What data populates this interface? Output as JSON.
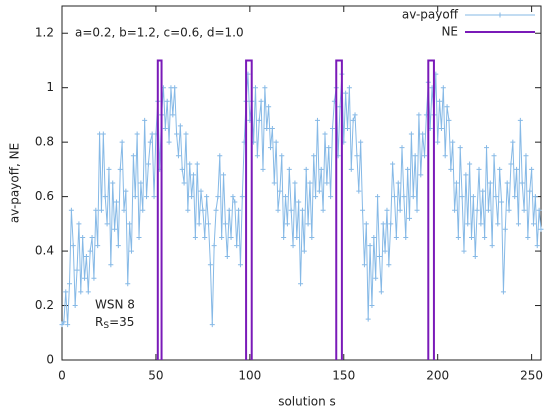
{
  "chart_data": {
    "type": "line",
    "xlabel": "solution s",
    "ylabel": "av-payoff, NE",
    "annotations": [
      "a=0.2, b=1.2, c=0.6, d=1.0",
      "WSN 8"
    ],
    "rs_label": {
      "base": "R",
      "sub": "S",
      "rest": "=35"
    },
    "xlim": [
      0,
      255
    ],
    "ylim": [
      0,
      1.3
    ],
    "xticks": [
      0,
      50,
      100,
      150,
      200,
      250
    ],
    "yticks": [
      0,
      0.2,
      0.4,
      0.6,
      0.8,
      1,
      1.2
    ],
    "legend": "upper right",
    "series": [
      {
        "name": "av-payoff",
        "color": "#86b9e6",
        "marker": "plus",
        "x": [
          0,
          1,
          2,
          3,
          4,
          5,
          6,
          7,
          8,
          9,
          10,
          11,
          12,
          13,
          14,
          15,
          16,
          17,
          18,
          19,
          20,
          21,
          22,
          23,
          24,
          25,
          26,
          27,
          28,
          29,
          30,
          31,
          32,
          33,
          34,
          35,
          36,
          37,
          38,
          39,
          40,
          41,
          42,
          43,
          44,
          45,
          46,
          47,
          48,
          49,
          50,
          51,
          52,
          53,
          54,
          55,
          56,
          57,
          58,
          59,
          60,
          61,
          62,
          63,
          64,
          65,
          66,
          67,
          68,
          69,
          70,
          71,
          72,
          73,
          74,
          75,
          76,
          77,
          78,
          79,
          80,
          81,
          82,
          83,
          84,
          85,
          86,
          87,
          88,
          89,
          90,
          91,
          92,
          93,
          94,
          95,
          96,
          97,
          98,
          99,
          100,
          101,
          102,
          103,
          104,
          105,
          106,
          107,
          108,
          109,
          110,
          111,
          112,
          113,
          114,
          115,
          116,
          117,
          118,
          119,
          120,
          121,
          122,
          123,
          124,
          125,
          126,
          127,
          128,
          129,
          130,
          131,
          132,
          133,
          134,
          135,
          136,
          137,
          138,
          139,
          140,
          141,
          142,
          143,
          144,
          145,
          146,
          147,
          148,
          149,
          150,
          151,
          152,
          153,
          154,
          155,
          156,
          157,
          158,
          159,
          160,
          161,
          162,
          163,
          164,
          165,
          166,
          167,
          168,
          169,
          170,
          171,
          172,
          173,
          174,
          175,
          176,
          177,
          178,
          179,
          180,
          181,
          182,
          183,
          184,
          185,
          186,
          187,
          188,
          189,
          190,
          191,
          192,
          193,
          194,
          195,
          196,
          197,
          198,
          199,
          200,
          201,
          202,
          203,
          204,
          205,
          206,
          207,
          208,
          209,
          210,
          211,
          212,
          213,
          214,
          215,
          216,
          217,
          218,
          219,
          220,
          221,
          222,
          223,
          224,
          225,
          226,
          227,
          228,
          229,
          230,
          231,
          232,
          233,
          234,
          235,
          236,
          237,
          238,
          239,
          240,
          241,
          242,
          243,
          244,
          245,
          246,
          247,
          248,
          249,
          250,
          251,
          252,
          253,
          254,
          255
        ],
        "values": [
          0.13,
          0.14,
          0.25,
          0.13,
          0.28,
          0.55,
          0.42,
          0.2,
          0.33,
          0.5,
          0.25,
          0.45,
          0.3,
          0.38,
          0.25,
          0.4,
          0.45,
          0.3,
          0.55,
          0.42,
          0.83,
          0.55,
          0.83,
          0.6,
          0.5,
          0.7,
          0.35,
          0.65,
          0.48,
          0.58,
          0.42,
          0.7,
          0.8,
          0.55,
          0.62,
          0.28,
          0.5,
          0.4,
          0.75,
          0.6,
          0.83,
          0.45,
          0.65,
          0.55,
          0.88,
          0.6,
          0.72,
          0.8,
          0.83,
          0.6,
          0.83,
          0.95,
          0.7,
          0.9,
          1.0,
          0.85,
          0.95,
          0.8,
          1.0,
          0.9,
          1.0,
          0.83,
          0.75,
          0.86,
          0.7,
          0.65,
          0.83,
          0.55,
          0.72,
          0.6,
          0.68,
          0.45,
          0.72,
          0.5,
          0.62,
          0.55,
          0.45,
          0.6,
          0.5,
          0.35,
          0.13,
          0.42,
          0.55,
          0.6,
          0.75,
          0.45,
          0.68,
          0.5,
          0.38,
          0.55,
          0.45,
          0.6,
          0.58,
          0.42,
          0.55,
          0.35,
          0.6,
          0.8,
          0.95,
          1.05,
          0.88,
          0.95,
          0.8,
          1.0,
          0.75,
          0.88,
          0.95,
          0.7,
          1.0,
          0.85,
          0.93,
          0.78,
          0.85,
          0.65,
          0.8,
          0.55,
          0.62,
          0.75,
          0.45,
          0.6,
          0.5,
          0.7,
          0.55,
          0.42,
          0.65,
          0.45,
          0.58,
          0.28,
          0.55,
          0.4,
          0.7,
          0.5,
          0.65,
          0.45,
          0.75,
          0.6,
          0.88,
          0.62,
          0.7,
          0.55,
          0.83,
          0.65,
          0.78,
          0.6,
          0.85,
          0.95,
          1.0,
          0.75,
          0.93,
          1.05,
          0.8,
          0.98,
          0.85,
          1.0,
          0.7,
          0.88,
          0.9,
          0.75,
          0.62,
          0.8,
          0.55,
          0.35,
          0.5,
          0.15,
          0.42,
          0.2,
          0.45,
          0.3,
          0.6,
          0.38,
          0.25,
          0.5,
          0.4,
          0.55,
          0.35,
          0.5,
          0.72,
          0.6,
          0.45,
          0.65,
          0.55,
          0.78,
          0.6,
          0.45,
          0.7,
          0.52,
          0.83,
          0.6,
          0.75,
          0.55,
          0.9,
          0.68,
          0.83,
          0.75,
          0.9,
          1.02,
          0.85,
          1.0,
          0.9,
          1.05,
          0.8,
          0.95,
          0.85,
          1.0,
          0.75,
          0.93,
          0.88,
          0.7,
          0.8,
          0.55,
          0.65,
          0.45,
          0.78,
          0.6,
          0.4,
          0.68,
          0.5,
          0.72,
          0.45,
          0.6,
          0.38,
          0.55,
          0.7,
          0.5,
          0.62,
          0.45,
          0.78,
          0.55,
          0.65,
          0.42,
          0.75,
          0.6,
          0.5,
          0.7,
          0.58,
          0.25,
          0.48,
          0.65,
          0.55,
          0.72,
          0.8,
          0.6,
          0.7,
          0.5,
          0.88,
          0.65,
          0.55,
          0.75,
          0.45,
          0.62,
          0.7,
          0.5,
          0.6,
          0.42,
          0.55,
          0.48
        ]
      },
      {
        "name": "NE",
        "color": "#7a1ab8",
        "x": [
          51,
          51,
          53,
          53,
          null,
          98,
          98,
          101,
          101,
          null,
          146,
          146,
          149,
          149,
          null,
          195,
          195,
          198,
          198
        ],
        "values": [
          0,
          1.1,
          1.1,
          0,
          null,
          0,
          1.1,
          1.1,
          0,
          null,
          0,
          1.1,
          1.1,
          0,
          null,
          0,
          1.1,
          1.1,
          0
        ]
      }
    ]
  }
}
